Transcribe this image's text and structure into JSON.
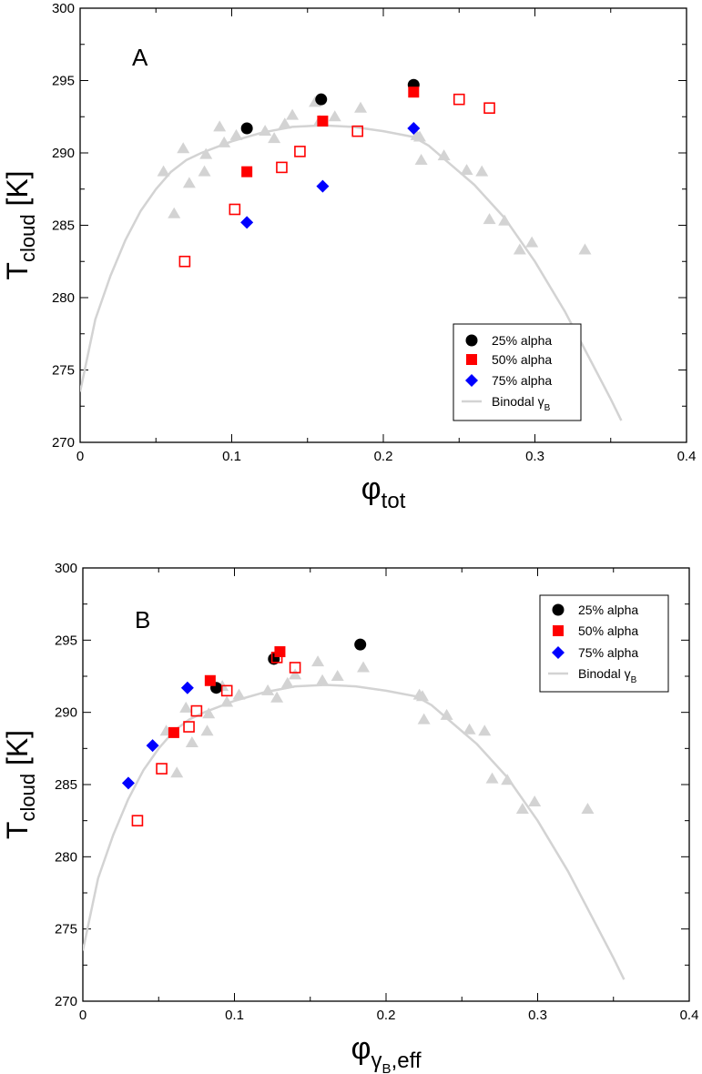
{
  "chart_data": [
    {
      "type": "scatter",
      "panel_label": "A",
      "xlim": [
        0,
        0.4
      ],
      "ylim": [
        270,
        300
      ],
      "xticks": [
        0,
        0.1,
        0.2,
        0.3,
        0.4
      ],
      "xtick_labels": [
        "0",
        "0.1",
        "0.2",
        "0.3",
        "0.4"
      ],
      "yticks": [
        270,
        275,
        280,
        285,
        290,
        295,
        300
      ],
      "ytick_labels": [
        "270",
        "275",
        "280",
        "285",
        "290",
        "295",
        "300"
      ],
      "ylabel_main": "T",
      "ylabel_sub": "cloud",
      "ylabel_unit": "[K]",
      "xlabel_main": "φ",
      "xlabel_sub": "tot",
      "xlabel_subsub": "",
      "legend": [
        {
          "label": "25% alpha",
          "marker": "circle"
        },
        {
          "label": "50% alpha",
          "marker": "square"
        },
        {
          "label": "75% alpha",
          "marker": "diamond"
        },
        {
          "label": "Binodal γ",
          "sub": "B",
          "marker": "line"
        }
      ],
      "series": [
        {
          "name": "Binodal γB",
          "kind": "line",
          "color": "#d3d3d3",
          "x": [
            0.0,
            0.01,
            0.02,
            0.03,
            0.04,
            0.05,
            0.06,
            0.07,
            0.08,
            0.1,
            0.12,
            0.14,
            0.16,
            0.18,
            0.2,
            0.22,
            0.23,
            0.24,
            0.26,
            0.28,
            0.3,
            0.32,
            0.34,
            0.35,
            0.357
          ],
          "y": [
            273.5,
            278.5,
            281.5,
            284.0,
            286.0,
            287.5,
            288.7,
            289.5,
            290.0,
            290.8,
            291.4,
            291.8,
            291.9,
            291.8,
            291.5,
            291.1,
            290.5,
            289.6,
            287.8,
            285.5,
            282.5,
            279.0,
            275.0,
            273.0,
            271.5
          ]
        },
        {
          "name": "gray points",
          "kind": "triangle",
          "color": "#d3d3d3",
          "x": [
            0.055,
            0.062,
            0.068,
            0.072,
            0.082,
            0.083,
            0.092,
            0.095,
            0.103,
            0.122,
            0.128,
            0.135,
            0.14,
            0.155,
            0.158,
            0.168,
            0.185,
            0.222,
            0.224,
            0.225,
            0.24,
            0.255,
            0.265,
            0.27,
            0.28,
            0.29,
            0.298,
            0.333
          ],
          "y": [
            288.7,
            285.8,
            290.3,
            287.9,
            288.7,
            289.9,
            291.8,
            290.7,
            291.2,
            291.5,
            291.0,
            292.0,
            292.6,
            293.5,
            292.2,
            292.5,
            293.1,
            291.2,
            291.1,
            289.5,
            289.8,
            288.8,
            288.7,
            285.4,
            285.3,
            283.3,
            283.8,
            283.3
          ]
        },
        {
          "name": "25% alpha",
          "kind": "circle",
          "color": "#000000",
          "x": [
            0.11,
            0.159,
            0.22
          ],
          "y": [
            291.7,
            293.7,
            294.7
          ]
        },
        {
          "name": "50% alpha",
          "kind": "square",
          "color": "#ff0000",
          "x": [
            0.11,
            0.16,
            0.22
          ],
          "y": [
            288.7,
            292.2,
            294.2
          ]
        },
        {
          "name": "50% alpha open",
          "kind": "square-open",
          "color": "#ff0000",
          "x": [
            0.069,
            0.102,
            0.133,
            0.145,
            0.183,
            0.25,
            0.27
          ],
          "y": [
            282.5,
            286.1,
            289.0,
            290.1,
            291.5,
            293.7,
            293.1
          ]
        },
        {
          "name": "75% alpha",
          "kind": "diamond",
          "color": "#0000ff",
          "x": [
            0.11,
            0.16,
            0.22
          ],
          "y": [
            285.2,
            287.7,
            291.7
          ]
        }
      ]
    },
    {
      "type": "scatter",
      "panel_label": "B",
      "xlim": [
        0,
        0.4
      ],
      "ylim": [
        270,
        300
      ],
      "xticks": [
        0,
        0.1,
        0.2,
        0.3,
        0.4
      ],
      "xtick_labels": [
        "0",
        "0.1",
        "0.2",
        "0.3",
        "0.4"
      ],
      "yticks": [
        270,
        275,
        280,
        285,
        290,
        295,
        300
      ],
      "ytick_labels": [
        "270",
        "275",
        "280",
        "285",
        "290",
        "295",
        "300"
      ],
      "ylabel_main": "T",
      "ylabel_sub": "cloud",
      "ylabel_unit": "[K]",
      "xlabel_main": "φ",
      "xlabel_sub": "γ",
      "xlabel_subsub": "B",
      "xlabel_tail": ",eff",
      "legend": [
        {
          "label": "25% alpha",
          "marker": "circle"
        },
        {
          "label": "50% alpha",
          "marker": "square"
        },
        {
          "label": "75% alpha",
          "marker": "diamond"
        },
        {
          "label": "Binodal γ",
          "sub": "B",
          "marker": "line"
        }
      ],
      "series": [
        {
          "name": "Binodal γB",
          "kind": "line",
          "color": "#d3d3d3",
          "x": [
            0.0,
            0.01,
            0.02,
            0.03,
            0.04,
            0.05,
            0.06,
            0.07,
            0.08,
            0.1,
            0.12,
            0.14,
            0.16,
            0.18,
            0.2,
            0.22,
            0.23,
            0.24,
            0.26,
            0.28,
            0.3,
            0.32,
            0.34,
            0.35,
            0.357
          ],
          "y": [
            273.5,
            278.5,
            281.5,
            284.0,
            286.0,
            287.5,
            288.7,
            289.5,
            290.0,
            290.8,
            291.4,
            291.8,
            291.9,
            291.8,
            291.5,
            291.1,
            290.5,
            289.6,
            287.8,
            285.5,
            282.5,
            279.0,
            275.0,
            273.0,
            271.5
          ]
        },
        {
          "name": "gray points",
          "kind": "triangle",
          "color": "#d3d3d3",
          "x": [
            0.055,
            0.062,
            0.068,
            0.072,
            0.082,
            0.083,
            0.092,
            0.095,
            0.103,
            0.122,
            0.128,
            0.135,
            0.14,
            0.155,
            0.158,
            0.168,
            0.185,
            0.222,
            0.224,
            0.225,
            0.24,
            0.255,
            0.265,
            0.27,
            0.28,
            0.29,
            0.298,
            0.333
          ],
          "y": [
            288.7,
            285.8,
            290.3,
            287.9,
            288.7,
            289.9,
            291.8,
            290.7,
            291.2,
            291.5,
            291.0,
            292.0,
            292.6,
            293.5,
            292.2,
            292.5,
            293.1,
            291.2,
            291.1,
            289.5,
            289.8,
            288.8,
            288.7,
            285.4,
            285.3,
            283.3,
            283.8,
            283.3
          ]
        },
        {
          "name": "25% alpha",
          "kind": "circle",
          "color": "#000000",
          "x": [
            0.088,
            0.126,
            0.183
          ],
          "y": [
            291.7,
            293.7,
            294.7
          ]
        },
        {
          "name": "50% alpha",
          "kind": "square",
          "color": "#ff0000",
          "x": [
            0.06,
            0.084,
            0.13
          ],
          "y": [
            288.6,
            292.2,
            294.2
          ]
        },
        {
          "name": "50% alpha open",
          "kind": "square-open",
          "color": "#ff0000",
          "x": [
            0.036,
            0.052,
            0.07,
            0.075,
            0.095,
            0.128,
            0.14
          ],
          "y": [
            282.5,
            286.1,
            289.0,
            290.1,
            291.5,
            293.8,
            293.1
          ]
        },
        {
          "name": "75% alpha",
          "kind": "diamond",
          "color": "#0000ff",
          "x": [
            0.03,
            0.046,
            0.069
          ],
          "y": [
            285.1,
            287.7,
            291.7
          ]
        }
      ]
    }
  ]
}
